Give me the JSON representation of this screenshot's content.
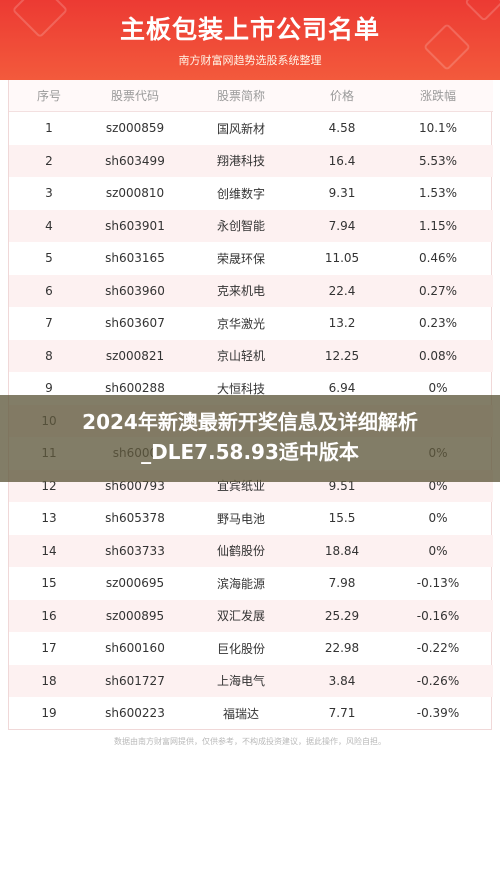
{
  "header": {
    "title": "主板包装上市公司名单",
    "subtitle": "南方财富网趋势选股系统整理"
  },
  "table": {
    "columns": [
      "序号",
      "股票代码",
      "股票简称",
      "价格",
      "涨跌幅"
    ],
    "rows": [
      [
        "1",
        "sz000859",
        "国风新材",
        "4.58",
        "10.1%"
      ],
      [
        "2",
        "sh603499",
        "翔港科技",
        "16.4",
        "5.53%"
      ],
      [
        "3",
        "sz000810",
        "创维数字",
        "9.31",
        "1.53%"
      ],
      [
        "4",
        "sh603901",
        "永创智能",
        "7.94",
        "1.15%"
      ],
      [
        "5",
        "sh603165",
        "荣晟环保",
        "11.05",
        "0.46%"
      ],
      [
        "6",
        "sh603960",
        "克来机电",
        "22.4",
        "0.27%"
      ],
      [
        "7",
        "sh603607",
        "京华激光",
        "13.2",
        "0.23%"
      ],
      [
        "8",
        "sz000821",
        "京山轻机",
        "12.25",
        "0.08%"
      ],
      [
        "9",
        "sh600288",
        "大恒科技",
        "6.94",
        "0%"
      ],
      [
        "10",
        "",
        "",
        "",
        ""
      ],
      [
        "11",
        "sh6000",
        "",
        "",
        "0%"
      ],
      [
        "12",
        "sh600793",
        "宜宾纸业",
        "9.51",
        "0%"
      ],
      [
        "13",
        "sh605378",
        "野马电池",
        "15.5",
        "0%"
      ],
      [
        "14",
        "sh603733",
        "仙鹤股份",
        "18.84",
        "0%"
      ],
      [
        "15",
        "sz000695",
        "滨海能源",
        "7.98",
        "-0.13%"
      ],
      [
        "16",
        "sz000895",
        "双汇发展",
        "25.29",
        "-0.16%"
      ],
      [
        "17",
        "sh600160",
        "巨化股份",
        "22.98",
        "-0.22%"
      ],
      [
        "18",
        "sh601727",
        "上海电气",
        "3.84",
        "-0.26%"
      ],
      [
        "19",
        "sh600223",
        "福瑞达",
        "7.71",
        "-0.39%"
      ]
    ]
  },
  "footer": {
    "disclaimer": "数据由南方财富网提供，仅供参考，不构成投资建议，据此操作，风险自担。"
  },
  "banner": {
    "line1": "2024年新澳最新开奖信息及详细解析",
    "line2": "_DLE7.58.93适中版本"
  }
}
